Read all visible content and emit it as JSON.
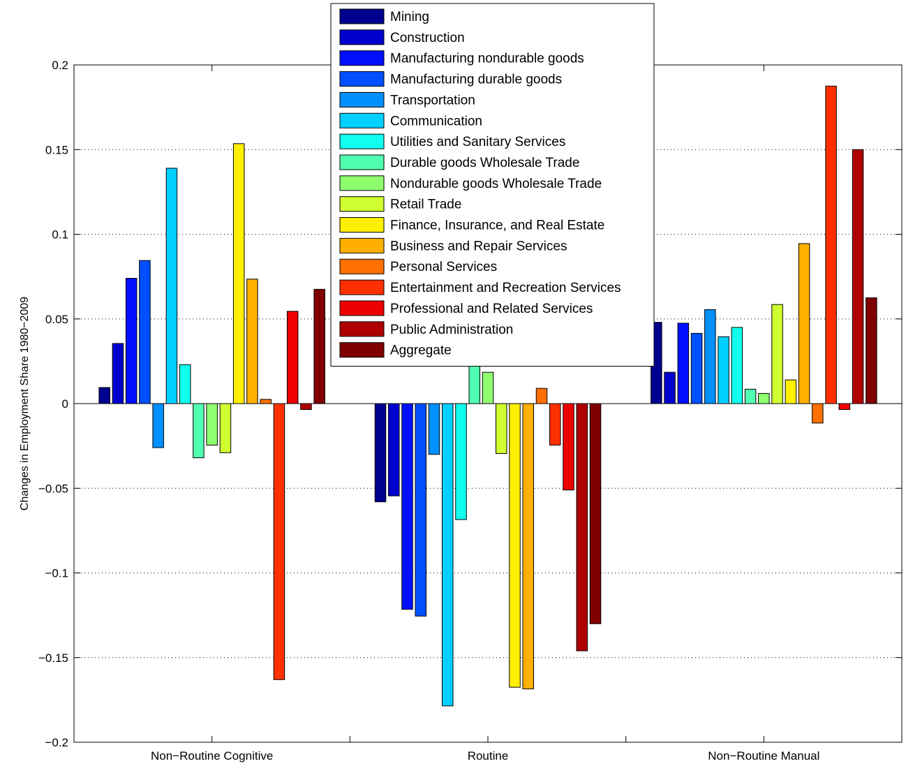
{
  "chart_data": {
    "type": "bar",
    "title": "",
    "xlabel": "",
    "ylabel": "Changes in Employment Share 1980−2009",
    "ylim": [
      -0.2,
      0.2
    ],
    "yticks": [
      -0.2,
      -0.15,
      -0.1,
      -0.05,
      0,
      0.05,
      0.1,
      0.15,
      0.2
    ],
    "ytick_labels": [
      "−0.2",
      "−0.15",
      "−0.1",
      "−0.05",
      "0",
      "0.05",
      "0.1",
      "0.15",
      "0.2"
    ],
    "categories": [
      "Non−Routine Cognitive",
      "Routine",
      "Non−Routine Manual"
    ],
    "grid": "horizontal dotted",
    "legend_position": "top-center",
    "series": [
      {
        "name": "Mining",
        "color": "#00008F",
        "values": [
          0.0095,
          -0.058,
          0.048
        ]
      },
      {
        "name": "Construction",
        "color": "#0000CF",
        "values": [
          0.0355,
          -0.0545,
          0.0185
        ]
      },
      {
        "name": "Manufacturing nondurable goods",
        "color": "#0010FF",
        "values": [
          0.074,
          -0.1215,
          0.0475
        ]
      },
      {
        "name": "Manufacturing durable goods",
        "color": "#0050FF",
        "values": [
          0.0845,
          -0.1255,
          0.0415
        ]
      },
      {
        "name": "Transportation",
        "color": "#0090FF",
        "values": [
          -0.026,
          -0.03,
          0.0555
        ]
      },
      {
        "name": "Communication",
        "color": "#00CFFF",
        "values": [
          0.139,
          -0.1785,
          0.0395
        ]
      },
      {
        "name": "Utilities and Sanitary Services",
        "color": "#10FFEF",
        "values": [
          0.023,
          -0.0685,
          0.045
        ]
      },
      {
        "name": "Durable goods Wholesale Trade",
        "color": "#50FFAF",
        "values": [
          -0.032,
          0.023,
          0.0085
        ]
      },
      {
        "name": "Nondurable goods Wholesale Trade",
        "color": "#8FFF70",
        "values": [
          -0.0245,
          0.0185,
          0.006
        ]
      },
      {
        "name": "Retail Trade",
        "color": "#CFFF30",
        "values": [
          -0.029,
          -0.0295,
          0.0585
        ]
      },
      {
        "name": "Finance, Insurance, and Real Estate",
        "color": "#FFEF00",
        "values": [
          0.1535,
          -0.1675,
          0.014
        ]
      },
      {
        "name": "Business and Repair Services",
        "color": "#FFAF00",
        "values": [
          0.0735,
          -0.1685,
          0.0945
        ]
      },
      {
        "name": "Personal Services",
        "color": "#FF7000",
        "values": [
          0.0025,
          0.009,
          -0.0115
        ]
      },
      {
        "name": "Entertainment and Recreation Services",
        "color": "#FF3000",
        "values": [
          -0.163,
          -0.0245,
          0.1875
        ]
      },
      {
        "name": "Professional and Related Services",
        "color": "#EF0000",
        "values": [
          0.0545,
          -0.051,
          -0.0035
        ]
      },
      {
        "name": "Public Administration",
        "color": "#AF0000",
        "values": [
          -0.0035,
          -0.146,
          0.15
        ]
      },
      {
        "name": "Aggregate",
        "color": "#800000",
        "values": [
          0.0675,
          -0.13,
          0.0625
        ]
      }
    ]
  }
}
